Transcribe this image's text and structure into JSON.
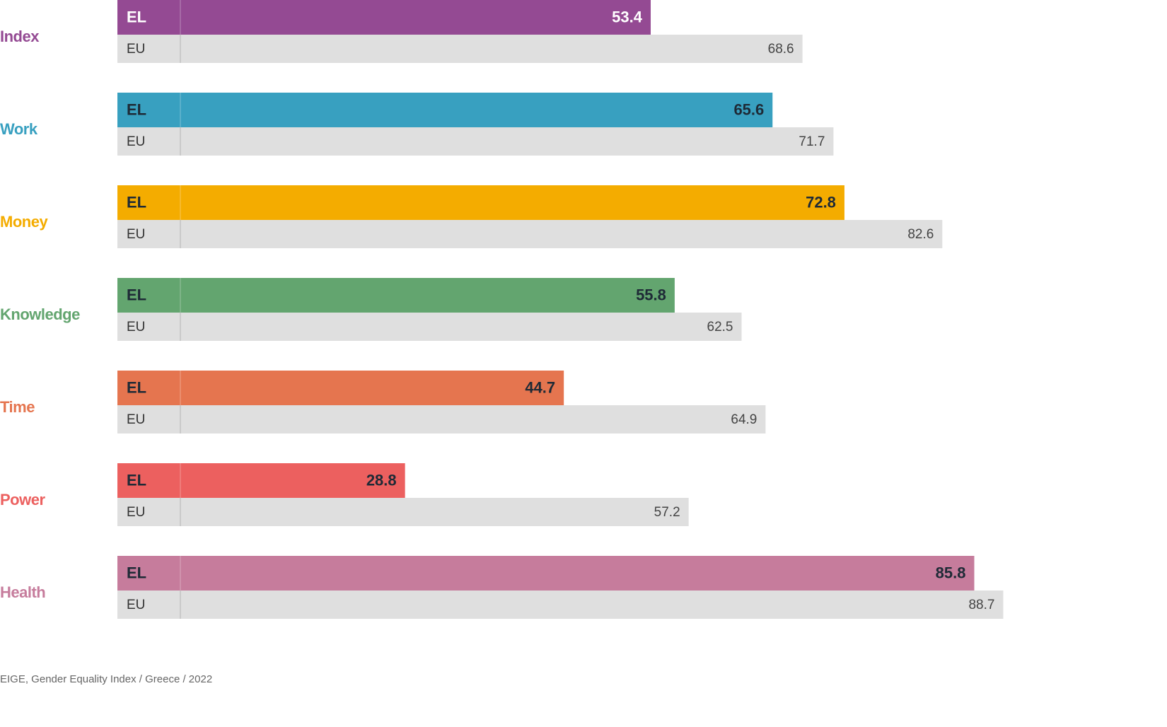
{
  "chart_data": {
    "type": "bar",
    "orientation": "horizontal",
    "categories": [
      "Index",
      "Work",
      "Money",
      "Knowledge",
      "Time",
      "Power",
      "Health"
    ],
    "series": [
      {
        "name": "EL",
        "values": [
          53.4,
          65.6,
          72.8,
          55.8,
          44.7,
          28.8,
          85.8
        ]
      },
      {
        "name": "EU",
        "values": [
          68.6,
          71.7,
          82.6,
          62.5,
          64.9,
          57.2,
          88.7
        ]
      }
    ],
    "category_colors": [
      "#944a93",
      "#38a0c0",
      "#f4ac00",
      "#63a56f",
      "#e5754f",
      "#ec605f",
      "#c67c9c"
    ],
    "eu_color": "#dfdfdf",
    "grid": false
  },
  "source": "EIGE, Gender Equality Index / Greece / 2022"
}
